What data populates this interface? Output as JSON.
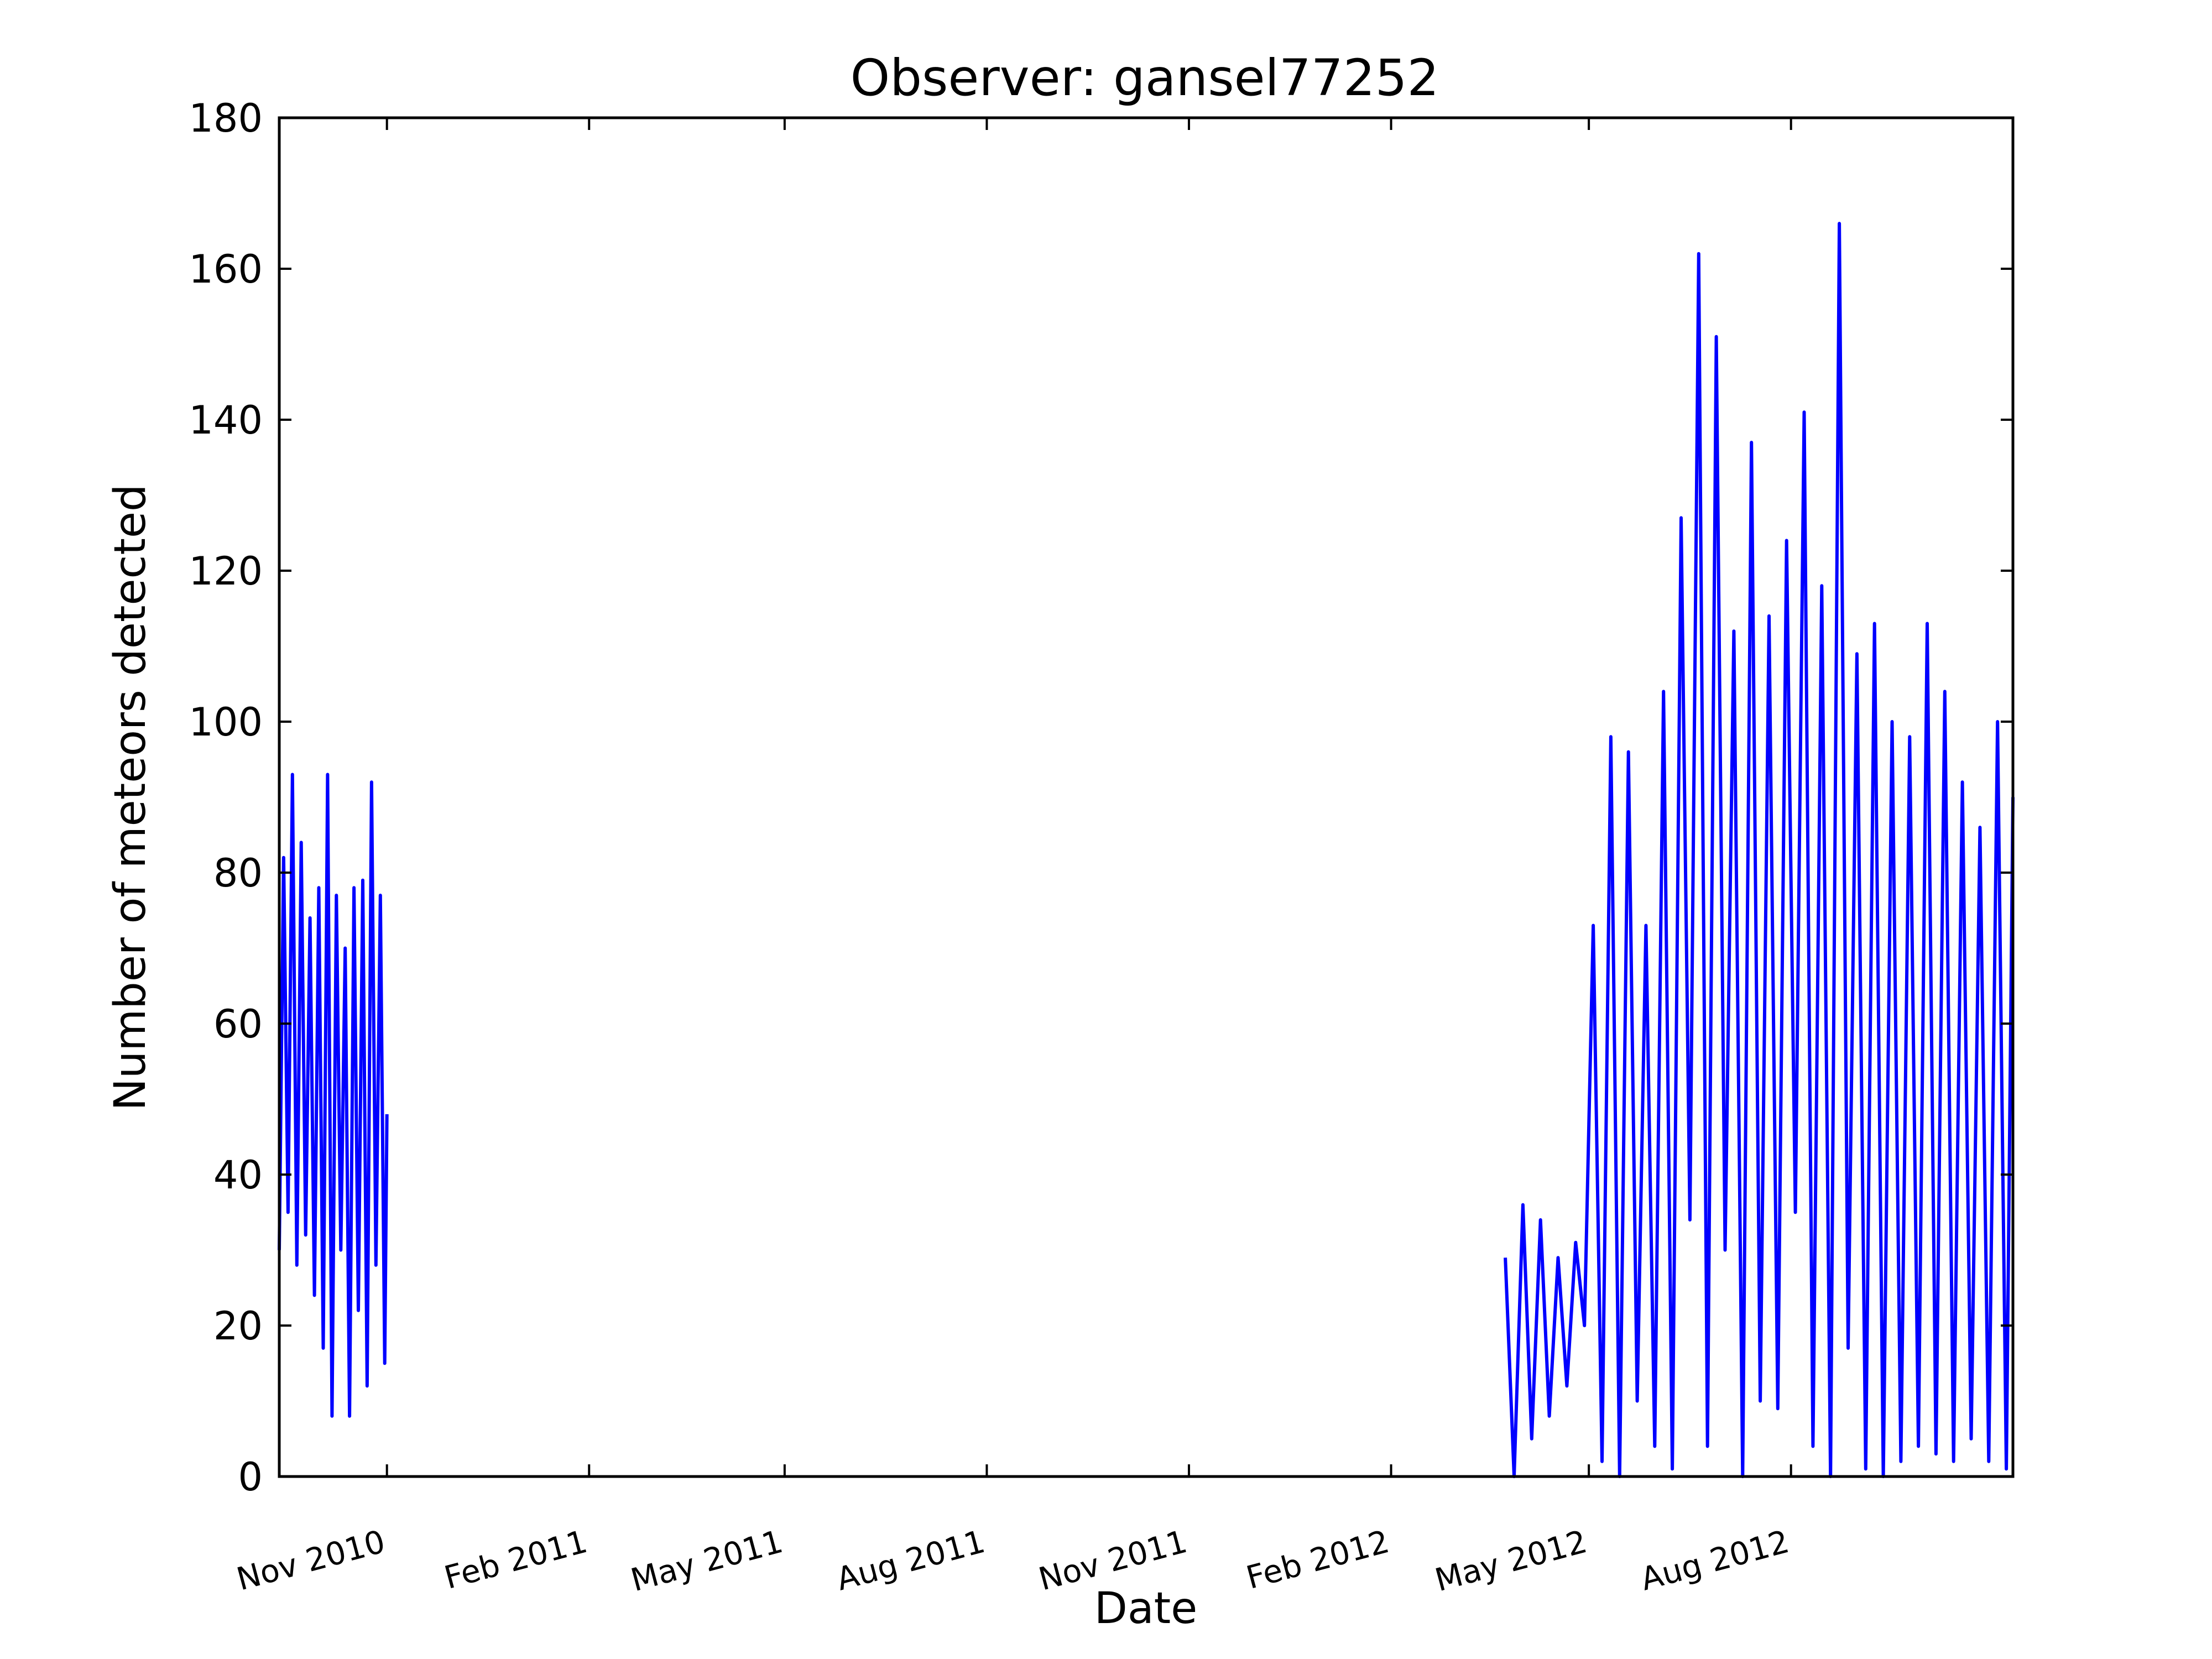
{
  "chart_data": {
    "type": "line",
    "title": "Observer: gansel77252",
    "xlabel": "Date",
    "ylabel": "Number of meteors detected",
    "ylim": [
      0,
      180
    ],
    "xlim": [
      "2010-09-13",
      "2012-11-10"
    ],
    "yticks": [
      0,
      20,
      40,
      60,
      80,
      100,
      120,
      140,
      160,
      180
    ],
    "xticks": [
      {
        "date": "2010-11-01",
        "label": "Nov 2010"
      },
      {
        "date": "2011-02-01",
        "label": "Feb 2011"
      },
      {
        "date": "2011-05-01",
        "label": "May 2011"
      },
      {
        "date": "2011-08-01",
        "label": "Aug 2011"
      },
      {
        "date": "2011-11-01",
        "label": "Nov 2011"
      },
      {
        "date": "2012-02-01",
        "label": "Feb 2012"
      },
      {
        "date": "2012-05-01",
        "label": "May 2012"
      },
      {
        "date": "2012-08-01",
        "label": "Aug 2012"
      }
    ],
    "grid": false,
    "line_color": "#0000ff",
    "series": [
      {
        "segments": [
          {
            "x": [
              "2010-09-13",
              "2010-09-15",
              "2010-09-17",
              "2010-09-19",
              "2010-09-21",
              "2010-09-23",
              "2010-09-25",
              "2010-09-27",
              "2010-09-29",
              "2010-10-01",
              "2010-10-03",
              "2010-10-05",
              "2010-10-07",
              "2010-10-09",
              "2010-10-11",
              "2010-10-13",
              "2010-10-15",
              "2010-10-17",
              "2010-10-19",
              "2010-10-21",
              "2010-10-23",
              "2010-10-25",
              "2010-10-27",
              "2010-10-29",
              "2010-10-31",
              "2010-11-01"
            ],
            "y": [
              30,
              82,
              35,
              93,
              28,
              84,
              32,
              74,
              24,
              78,
              17,
              93,
              8,
              77,
              30,
              70,
              8,
              78,
              22,
              79,
              12,
              92,
              28,
              77,
              15,
              48
            ]
          },
          {
            "x": [
              "2012-03-24",
              "2012-03-28",
              "2012-04-01",
              "2012-04-05",
              "2012-04-09",
              "2012-04-13",
              "2012-04-17",
              "2012-04-21",
              "2012-04-25",
              "2012-04-29",
              "2012-05-03",
              "2012-05-07",
              "2012-05-11",
              "2012-05-15",
              "2012-05-19",
              "2012-05-23",
              "2012-05-27",
              "2012-05-31",
              "2012-06-04",
              "2012-06-08",
              "2012-06-12",
              "2012-06-16",
              "2012-06-20",
              "2012-06-24",
              "2012-06-28",
              "2012-07-02",
              "2012-07-06",
              "2012-07-10",
              "2012-07-14",
              "2012-07-18",
              "2012-07-22",
              "2012-07-26",
              "2012-07-30",
              "2012-08-03",
              "2012-08-07",
              "2012-08-11",
              "2012-08-15",
              "2012-08-19",
              "2012-08-23",
              "2012-08-27",
              "2012-08-31",
              "2012-09-04",
              "2012-09-08",
              "2012-09-12",
              "2012-09-16",
              "2012-09-20",
              "2012-09-24",
              "2012-09-28",
              "2012-10-02",
              "2012-10-06",
              "2012-10-10",
              "2012-10-14",
              "2012-10-18",
              "2012-10-22",
              "2012-10-26",
              "2012-10-30",
              "2012-11-03",
              "2012-11-07",
              "2012-11-10"
            ],
            "y": [
              29,
              0,
              36,
              5,
              34,
              8,
              29,
              12,
              31,
              20,
              73,
              2,
              98,
              0,
              96,
              10,
              73,
              4,
              104,
              1,
              127,
              34,
              162,
              4,
              151,
              30,
              112,
              0,
              137,
              10,
              114,
              9,
              124,
              35,
              141,
              4,
              118,
              0,
              166,
              17,
              109,
              1,
              113,
              0,
              100,
              2,
              98,
              4,
              113,
              3,
              104,
              2,
              92,
              5,
              86,
              2,
              100,
              1,
              90
            ]
          }
        ]
      }
    ]
  }
}
